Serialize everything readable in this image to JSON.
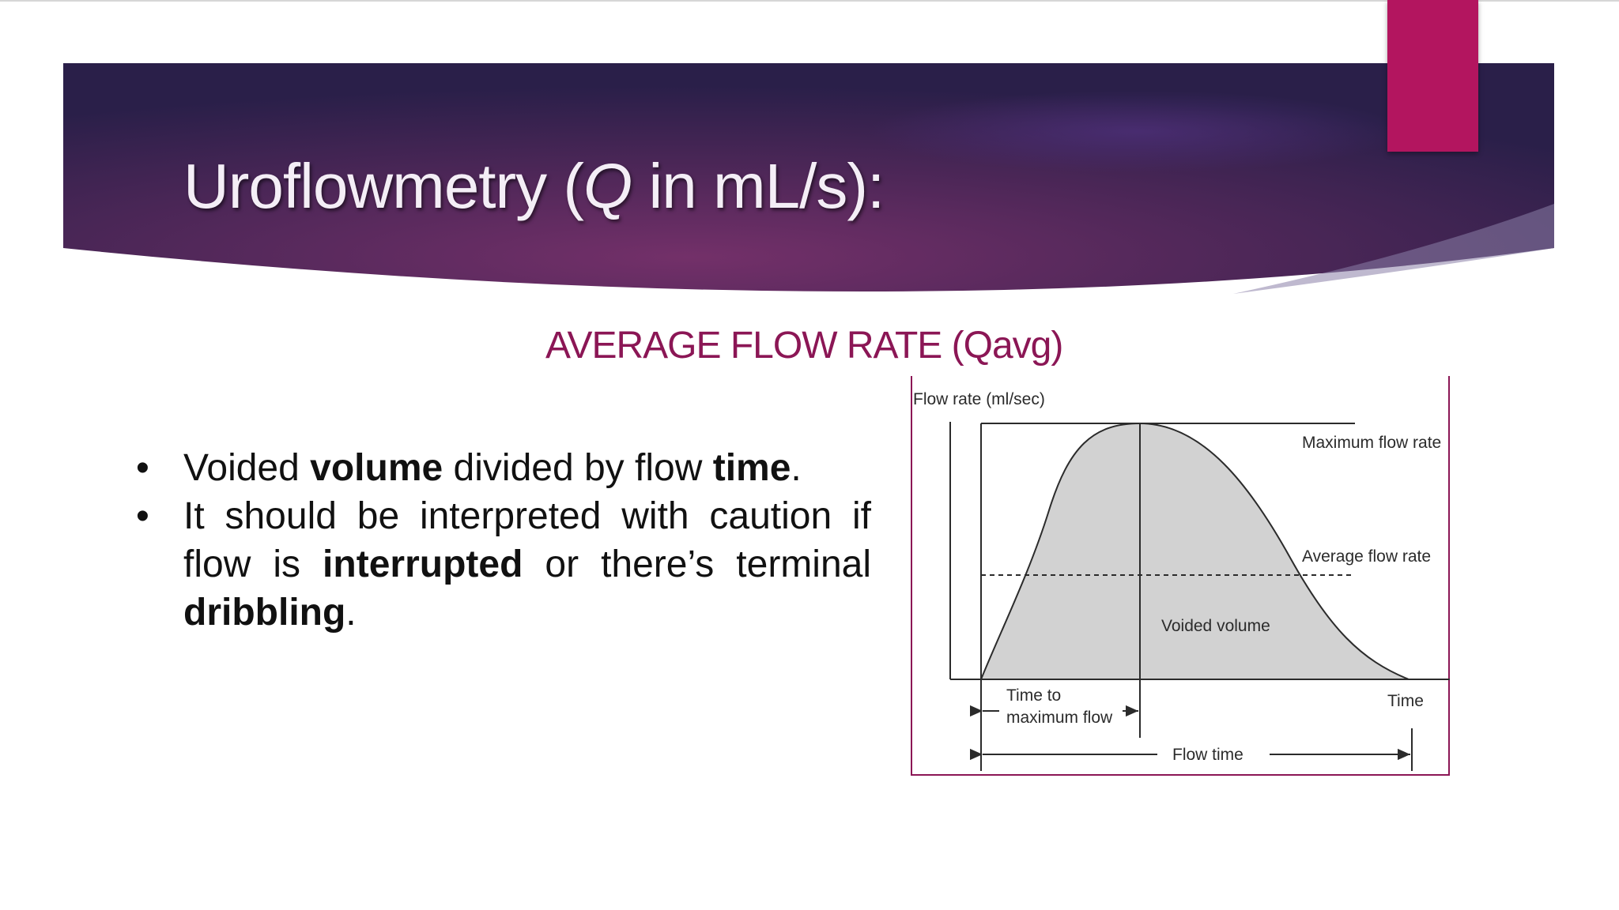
{
  "slide": {
    "title_prefix": "Uroflowmetry (",
    "title_symbol": "Q",
    "title_suffix": " in mL/s):",
    "subtitle": "AVERAGE FLOW RATE (Qavg)",
    "bullets": [
      {
        "marker": "•",
        "parts": [
          {
            "text": "Voided ",
            "bold": false
          },
          {
            "text": "volume",
            "bold": true
          },
          {
            "text": " divided by flow ",
            "bold": false
          },
          {
            "text": "time",
            "bold": true
          },
          {
            "text": ".",
            "bold": false
          }
        ]
      },
      {
        "marker": "•",
        "parts": [
          {
            "text": "It should be interpreted with caution if flow is ",
            "bold": false
          },
          {
            "text": "interrupted",
            "bold": true
          },
          {
            "text": " or there’s terminal ",
            "bold": false
          },
          {
            "text": "dribbling",
            "bold": true
          },
          {
            "text": ".",
            "bold": false
          }
        ]
      }
    ]
  },
  "figure": {
    "y_axis_label": "Flow rate (ml/sec)",
    "x_axis_label": "Time",
    "max_label": "Maximum flow rate",
    "avg_label": "Average flow rate",
    "area_label": "Voided volume",
    "ttm_label_line1": "Time to",
    "ttm_label_line2": "maximum flow",
    "flow_time_label": "Flow time"
  },
  "colors": {
    "banner_dark": "#2c1f4a",
    "banner_mid": "#6b2a64",
    "accent": "#b3155f",
    "subtitle": "#8b1655",
    "curve_fill": "#d2d2d2"
  }
}
